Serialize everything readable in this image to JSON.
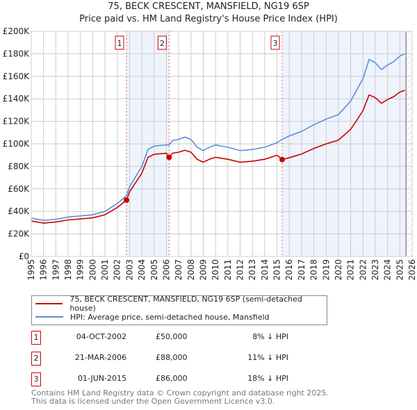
{
  "title": "75, BECK CRESCENT, MANSFIELD, NG19 6SP",
  "subtitle": "Price paid vs. HM Land Registry's House Price Index (HPI)",
  "chart_data": {
    "type": "line",
    "title": "75, BECK CRESCENT, MANSFIELD, NG19 6SP",
    "subtitle": "Price paid vs. HM Land Registry's House Price Index (HPI)",
    "xlim": [
      1995,
      2026
    ],
    "ylim": [
      0,
      200000
    ],
    "x_ticks": [
      "1995",
      "1996",
      "1997",
      "1998",
      "1999",
      "2000",
      "2001",
      "2002",
      "2003",
      "2004",
      "2005",
      "2006",
      "2007",
      "2008",
      "2009",
      "2010",
      "2011",
      "2012",
      "2013",
      "2014",
      "2015",
      "2016",
      "2017",
      "2018",
      "2019",
      "2020",
      "2021",
      "2022",
      "2023",
      "2024",
      "2025",
      "2026"
    ],
    "y_ticks": [
      {
        "v": 0,
        "label": "£0"
      },
      {
        "v": 20000,
        "label": "£20K"
      },
      {
        "v": 40000,
        "label": "£40K"
      },
      {
        "v": 60000,
        "label": "£60K"
      },
      {
        "v": 80000,
        "label": "£80K"
      },
      {
        "v": 100000,
        "label": "£100K"
      },
      {
        "v": 120000,
        "label": "£120K"
      },
      {
        "v": 140000,
        "label": "£140K"
      },
      {
        "v": 160000,
        "label": "£160K"
      },
      {
        "v": 180000,
        "label": "£180K"
      },
      {
        "v": 200000,
        "label": "£200K"
      }
    ],
    "grid": true,
    "series": [
      {
        "name": "75, BECK CRESCENT, MANSFIELD, NG19 6SP (semi-detached house)",
        "color": "#cc0000",
        "x": [
          1995,
          1996,
          1997,
          1998,
          1999,
          2000,
          2001,
          2002,
          2002.75,
          2003,
          2004,
          2004.5,
          2005,
          2006,
          2006.22,
          2006.5,
          2007,
          2007.5,
          2008,
          2008.5,
          2009,
          2009.5,
          2010,
          2011,
          2012,
          2013,
          2014,
          2015,
          2015.42,
          2016,
          2017,
          2018,
          2019,
          2020,
          2021,
          2021.5,
          2022,
          2022.5,
          2023,
          2023.5,
          2024,
          2024.5,
          2025,
          2025.4
        ],
        "y": [
          31500,
          29600,
          30600,
          32400,
          33300,
          34300,
          37000,
          43500,
          50000,
          57400,
          74000,
          88000,
          90700,
          91700,
          88000,
          91700,
          92600,
          94300,
          92600,
          86300,
          83700,
          86300,
          88100,
          86300,
          83700,
          84600,
          86300,
          89900,
          86000,
          87700,
          91000,
          95900,
          100000,
          103300,
          113000,
          121000,
          129600,
          143500,
          141000,
          136000,
          139400,
          141900,
          146000,
          147600
        ]
      },
      {
        "name": "HPI: Average price, semi-detached house, Mansfield",
        "color": "#5b8fd4",
        "x": [
          1995,
          1996,
          1997,
          1998,
          1999,
          2000,
          2001,
          2002,
          2002.75,
          2003,
          2004,
          2004.5,
          2005,
          2006,
          2006.22,
          2006.5,
          2007,
          2007.5,
          2008,
          2008.5,
          2009,
          2009.5,
          2010,
          2011,
          2012,
          2013,
          2014,
          2015,
          2015.42,
          2016,
          2017,
          2018,
          2019,
          2020,
          2021,
          2021.5,
          2022,
          2022.5,
          2023,
          2023.5,
          2024,
          2024.5,
          2025,
          2025.4
        ],
        "y": [
          34000,
          32000,
          33000,
          35000,
          36000,
          37000,
          40000,
          47000,
          54000,
          62000,
          80000,
          95000,
          98000,
          99000,
          99000,
          103000,
          104000,
          106000,
          104000,
          97000,
          94000,
          97000,
          99000,
          97000,
          94000,
          95000,
          97000,
          101000,
          104000,
          107000,
          111000,
          117000,
          122000,
          126000,
          138000,
          148000,
          158000,
          175000,
          172000,
          166000,
          170000,
          173000,
          178000,
          180000
        ]
      }
    ],
    "sales": [
      {
        "n": "1",
        "x": 2002.75,
        "y": 50000,
        "date": "04-OCT-2002",
        "price": "£50,000",
        "hpi": "8% ↓ HPI"
      },
      {
        "n": "2",
        "x": 2006.22,
        "y": 88000,
        "date": "21-MAR-2006",
        "price": "£88,000",
        "hpi": "11% ↓ HPI"
      },
      {
        "n": "3",
        "x": 2015.42,
        "y": 86000,
        "date": "01-JUN-2015",
        "price": "£86,000",
        "hpi": "18% ↓ HPI"
      }
    ],
    "forecast_start": 2025.5,
    "legend_position": "below"
  },
  "footer": {
    "line1": "Contains HM Land Registry data © Crown copyright and database right 2025.",
    "line2": "This data is licensed under the Open Government Licence v3.0."
  }
}
